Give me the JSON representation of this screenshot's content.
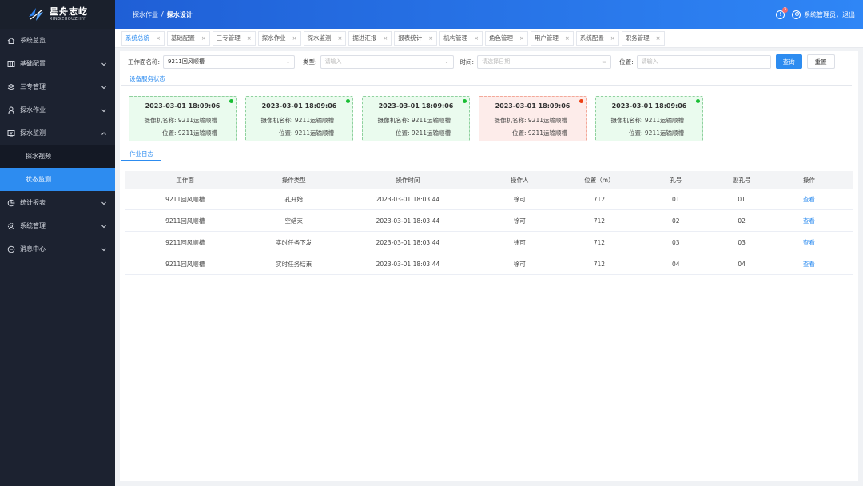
{
  "logo": {
    "main": "星舟志屹",
    "sub": "XINGZHOUZHIYI"
  },
  "sidebar": {
    "items": [
      {
        "label": "系统总览",
        "icon": "home-icon",
        "has_children": false
      },
      {
        "label": "基础配置",
        "icon": "grid-icon",
        "has_children": true
      },
      {
        "label": "三专管理",
        "icon": "layers-icon",
        "has_children": true
      },
      {
        "label": "探水作业",
        "icon": "user-icon",
        "has_children": true
      },
      {
        "label": "探水监测",
        "icon": "monitor-icon",
        "has_children": true,
        "expanded": true,
        "children": [
          {
            "label": "探水视频"
          },
          {
            "label": "状态监测",
            "active": true
          }
        ]
      },
      {
        "label": "统计报表",
        "icon": "pie-chart-icon",
        "has_children": true
      },
      {
        "label": "系统管理",
        "icon": "settings-icon",
        "has_children": true
      },
      {
        "label": "消息中心",
        "icon": "message-icon",
        "has_children": true
      }
    ]
  },
  "header": {
    "breadcrumb": [
      "探水作业",
      "/",
      "探水设计"
    ],
    "badge_count": "3",
    "bell_glyph": "!",
    "user_text": "系统管理员，退出"
  },
  "tabs": [
    {
      "label": "系统总貌",
      "active": true
    },
    {
      "label": "基础配置"
    },
    {
      "label": "三专管理"
    },
    {
      "label": "探水作业"
    },
    {
      "label": "探水监测"
    },
    {
      "label": "掘进汇报"
    },
    {
      "label": "报表统计"
    },
    {
      "label": "机构管理"
    },
    {
      "label": "角色管理"
    },
    {
      "label": "用户管理"
    },
    {
      "label": "系统配置"
    },
    {
      "label": "职务管理"
    }
  ],
  "tab_close": "×",
  "search": {
    "workface_label": "工作面名称:",
    "workface_value": "9211回风顺槽",
    "type_label": "类型:",
    "type_placeholder": "请输入",
    "time_label": "时间:",
    "time_placeholder": "请选择日期",
    "position_label": "位置:",
    "position_placeholder": "请输入",
    "query_button": "查询",
    "reset_button": "重置"
  },
  "device_section": {
    "title": "设备服务状态"
  },
  "cards": [
    {
      "time": "2023-03-01 18:09:06",
      "camera_label": "摄像机名称:",
      "camera_value": "9211运输顺槽",
      "position_label": "位置:",
      "position_value": "9211运输顺槽",
      "status": "normal"
    },
    {
      "time": "2023-03-01 18:09:06",
      "camera_label": "摄像机名称:",
      "camera_value": "9211运输顺槽",
      "position_label": "位置:",
      "position_value": "9211运输顺槽",
      "status": "normal"
    },
    {
      "time": "2023-03-01 18:09:06",
      "camera_label": "摄像机名称:",
      "camera_value": "9211运输顺槽",
      "position_label": "位置:",
      "position_value": "9211运输顺槽",
      "status": "normal"
    },
    {
      "time": "2023-03-01 18:09:06",
      "camera_label": "摄像机名称:",
      "camera_value": "9211运输顺槽",
      "position_label": "位置:",
      "position_value": "9211运输顺槽",
      "status": "alarm"
    },
    {
      "time": "2023-03-01 18:09:06",
      "camera_label": "摄像机名称:",
      "camera_value": "9211运输顺槽",
      "position_label": "位置:",
      "position_value": "9211运输顺槽",
      "status": "normal"
    }
  ],
  "log_section": {
    "title": "作业日志"
  },
  "table": {
    "headers": [
      "工作面",
      "操作类型",
      "操作时间",
      "操作人",
      "位置（m）",
      "孔号",
      "副孔号",
      "操作"
    ],
    "rows": [
      [
        "9211回风顺槽",
        "孔开始",
        "2023-03-01 18:03:44",
        "徐可",
        "712",
        "01",
        "01",
        "查看"
      ],
      [
        "9211回风顺槽",
        "空结束",
        "2023-03-01 18:03:44",
        "徐可",
        "712",
        "02",
        "02",
        "查看"
      ],
      [
        "9211回风顺槽",
        "实时任务下发",
        "2023-03-01 18:03:44",
        "徐可",
        "712",
        "03",
        "03",
        "查看"
      ],
      [
        "9211回风顺槽",
        "实时任务结束",
        "2023-03-01 18:03:44",
        "徐可",
        "712",
        "04",
        "04",
        "查看"
      ]
    ]
  },
  "colors": {
    "primary": "#2d8cf0",
    "sidebar_bg": "#1c2230",
    "ok": "#19be34",
    "alarm": "#ed4014"
  }
}
